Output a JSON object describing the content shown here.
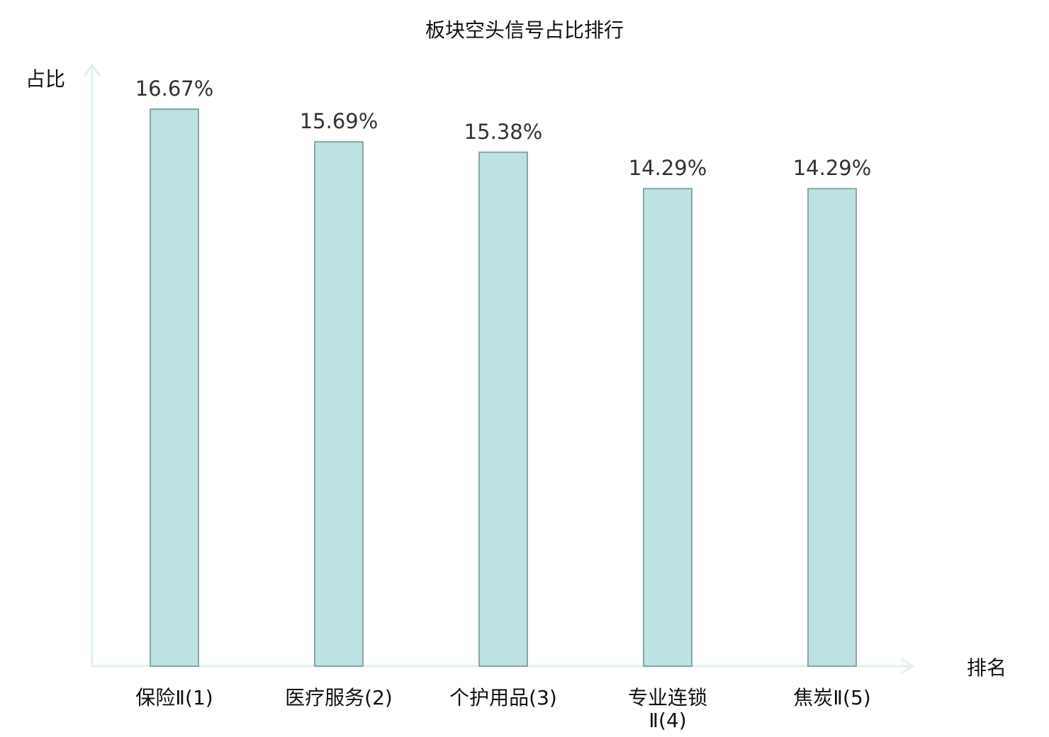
{
  "chart_data": {
    "type": "bar",
    "title": "板块空头信号占比排行",
    "ylabel": "占比",
    "xlabel": "排名",
    "categories": [
      [
        "保险Ⅱ(1)"
      ],
      [
        "医疗服务(2)"
      ],
      [
        "个护用品(3)"
      ],
      [
        "专业连锁",
        "Ⅱ(4)"
      ],
      [
        "焦炭Ⅱ(5)"
      ]
    ],
    "values": [
      16.67,
      15.69,
      15.38,
      14.29,
      14.29
    ],
    "value_labels": [
      "16.67%",
      "15.69%",
      "15.38%",
      "14.29%",
      "14.29%"
    ],
    "ylim": [
      0,
      16.67
    ],
    "grid": false,
    "highlight_index": 1,
    "colors": {
      "bar_fill": "#bde2e3",
      "bar_stroke": "#8aa5a6",
      "axis": "#dff2ef",
      "highlight_text": "#e01e1e",
      "text": "#111111",
      "value_text": "#333333"
    }
  }
}
